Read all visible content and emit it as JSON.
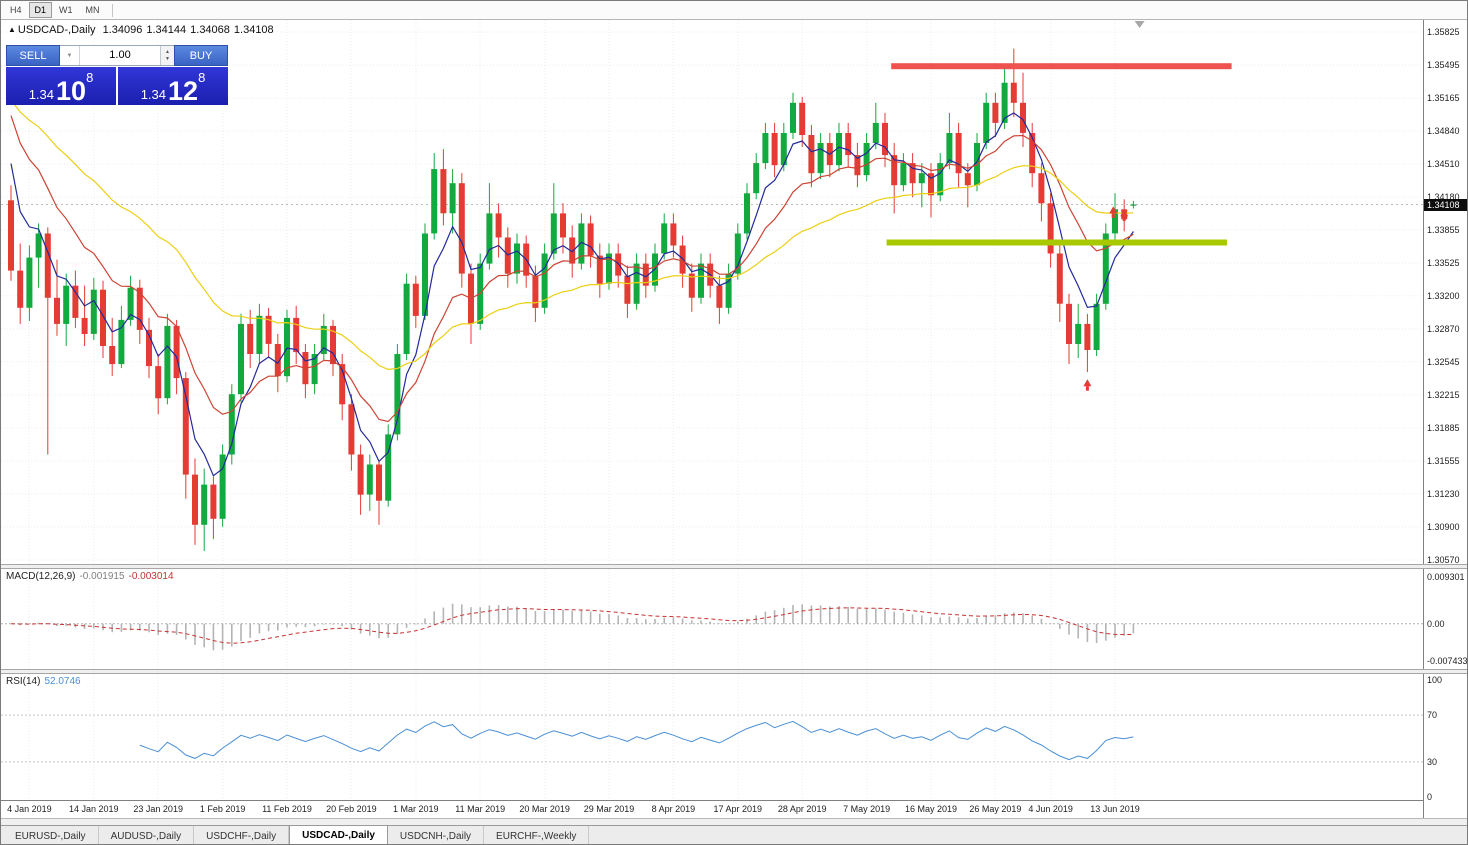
{
  "toolbar": {
    "timeframes": [
      "H4",
      "D1",
      "W1",
      "MN"
    ],
    "active": "D1"
  },
  "symbol_info": {
    "direction_icon": "up-triangle",
    "symbol": "USDCAD-,Daily",
    "open": "1.34096",
    "high": "1.34144",
    "low": "1.34068",
    "close": "1.34108"
  },
  "trade_panel": {
    "sell_label": "SELL",
    "buy_label": "BUY",
    "volume": "1.00",
    "sell_price": {
      "base": "1.34",
      "pips": "10",
      "pipette": "8"
    },
    "buy_price": {
      "base": "1.34",
      "pips": "12",
      "pipette": "8"
    }
  },
  "price_badge": "1.34108",
  "chart_data": {
    "type": "candlestick",
    "symbol": "USDCAD",
    "timeframe": "Daily",
    "ylim": [
      1.3057,
      1.35825
    ],
    "y_axis_labels": [
      "1.35825",
      "1.35495",
      "1.35165",
      "1.34840",
      "1.34510",
      "1.34180",
      "1.33855",
      "1.33525",
      "1.33200",
      "1.32870",
      "1.32545",
      "1.32215",
      "1.31885",
      "1.31555",
      "1.31230",
      "1.30900",
      "1.30570"
    ],
    "x_labels": [
      {
        "index": 2,
        "label": "4 Jan 2019"
      },
      {
        "index": 9,
        "label": "14 Jan 2019"
      },
      {
        "index": 16,
        "label": "23 Jan 2019"
      },
      {
        "index": 23,
        "label": "1 Feb 2019"
      },
      {
        "index": 30,
        "label": "11 Feb 2019"
      },
      {
        "index": 37,
        "label": "20 Feb 2019"
      },
      {
        "index": 44,
        "label": "1 Mar 2019"
      },
      {
        "index": 51,
        "label": "11 Mar 2019"
      },
      {
        "index": 58,
        "label": "20 Mar 2019"
      },
      {
        "index": 65,
        "label": "29 Mar 2019"
      },
      {
        "index": 72,
        "label": "8 Apr 2019"
      },
      {
        "index": 79,
        "label": "17 Apr 2019"
      },
      {
        "index": 86,
        "label": "28 Apr 2019"
      },
      {
        "index": 93,
        "label": "7 May 2019"
      },
      {
        "index": 100,
        "label": "16 May 2019"
      },
      {
        "index": 107,
        "label": "26 May 2019"
      },
      {
        "index": 113,
        "label": "4 Jun 2019"
      },
      {
        "index": 120,
        "label": "13 Jun 2019"
      }
    ],
    "up_color": "#12a93e",
    "down_color": "#e43b35",
    "candles": [
      [
        1.3415,
        1.343,
        1.3335,
        1.3345
      ],
      [
        1.3345,
        1.3372,
        1.3292,
        1.3308
      ],
      [
        1.3308,
        1.337,
        1.3295,
        1.3358
      ],
      [
        1.3358,
        1.3392,
        1.3328,
        1.3382
      ],
      [
        1.3382,
        1.3388,
        1.3162,
        1.3318
      ],
      [
        1.3318,
        1.3356,
        1.328,
        1.3292
      ],
      [
        1.3292,
        1.3342,
        1.327,
        1.333
      ],
      [
        1.333,
        1.3345,
        1.3288,
        1.3298
      ],
      [
        1.3298,
        1.333,
        1.327,
        1.3282
      ],
      [
        1.3282,
        1.3338,
        1.3276,
        1.3326
      ],
      [
        1.3326,
        1.3335,
        1.3258,
        1.327
      ],
      [
        1.327,
        1.3298,
        1.324,
        1.3252
      ],
      [
        1.3252,
        1.331,
        1.3248,
        1.3296
      ],
      [
        1.3296,
        1.334,
        1.329,
        1.3328
      ],
      [
        1.3328,
        1.3336,
        1.3272,
        1.3286
      ],
      [
        1.3286,
        1.3298,
        1.3238,
        1.325
      ],
      [
        1.325,
        1.3262,
        1.3202,
        1.3218
      ],
      [
        1.3218,
        1.3302,
        1.3212,
        1.329
      ],
      [
        1.329,
        1.3296,
        1.3222,
        1.3238
      ],
      [
        1.3238,
        1.3244,
        1.3118,
        1.3142
      ],
      [
        1.3142,
        1.3158,
        1.3072,
        1.3092
      ],
      [
        1.3092,
        1.3148,
        1.3066,
        1.3132
      ],
      [
        1.3132,
        1.314,
        1.3078,
        1.3098
      ],
      [
        1.3098,
        1.3172,
        1.309,
        1.3162
      ],
      [
        1.3162,
        1.3232,
        1.3152,
        1.3222
      ],
      [
        1.3222,
        1.3302,
        1.3214,
        1.3292
      ],
      [
        1.3292,
        1.3306,
        1.3248,
        1.3262
      ],
      [
        1.3262,
        1.3312,
        1.3252,
        1.33
      ],
      [
        1.33,
        1.3308,
        1.3258,
        1.3272
      ],
      [
        1.3272,
        1.3282,
        1.3224,
        1.324
      ],
      [
        1.324,
        1.3306,
        1.3234,
        1.3298
      ],
      [
        1.3298,
        1.331,
        1.3252,
        1.3264
      ],
      [
        1.3264,
        1.3272,
        1.3218,
        1.3232
      ],
      [
        1.3232,
        1.3272,
        1.3222,
        1.3262
      ],
      [
        1.3262,
        1.3302,
        1.3256,
        1.329
      ],
      [
        1.329,
        1.3296,
        1.324,
        1.3252
      ],
      [
        1.3252,
        1.3262,
        1.3196,
        1.3212
      ],
      [
        1.3212,
        1.3222,
        1.3146,
        1.3162
      ],
      [
        1.3162,
        1.3172,
        1.3102,
        1.3122
      ],
      [
        1.3122,
        1.3162,
        1.3106,
        1.3152
      ],
      [
        1.3152,
        1.3156,
        1.3092,
        1.3116
      ],
      [
        1.3116,
        1.3192,
        1.311,
        1.3182
      ],
      [
        1.3182,
        1.3272,
        1.3176,
        1.3262
      ],
      [
        1.3262,
        1.3342,
        1.3256,
        1.3332
      ],
      [
        1.3332,
        1.334,
        1.3288,
        1.33
      ],
      [
        1.33,
        1.3392,
        1.3296,
        1.3382
      ],
      [
        1.3382,
        1.3462,
        1.3376,
        1.3446
      ],
      [
        1.3446,
        1.3466,
        1.339,
        1.3402
      ],
      [
        1.3402,
        1.3446,
        1.3382,
        1.3432
      ],
      [
        1.3432,
        1.3442,
        1.3328,
        1.3342
      ],
      [
        1.3342,
        1.3352,
        1.3272,
        1.3292
      ],
      [
        1.3292,
        1.3362,
        1.3286,
        1.3352
      ],
      [
        1.3352,
        1.3432,
        1.3346,
        1.3402
      ],
      [
        1.3402,
        1.3412,
        1.3358,
        1.3378
      ],
      [
        1.3378,
        1.3388,
        1.3328,
        1.3342
      ],
      [
        1.3342,
        1.3382,
        1.3332,
        1.3372
      ],
      [
        1.3372,
        1.338,
        1.3328,
        1.334
      ],
      [
        1.334,
        1.335,
        1.3294,
        1.3308
      ],
      [
        1.3308,
        1.3372,
        1.3302,
        1.3362
      ],
      [
        1.3362,
        1.3432,
        1.3356,
        1.3402
      ],
      [
        1.3402,
        1.3412,
        1.3362,
        1.3378
      ],
      [
        1.3378,
        1.339,
        1.3338,
        1.3352
      ],
      [
        1.3352,
        1.3402,
        1.3346,
        1.3392
      ],
      [
        1.3392,
        1.34,
        1.3348,
        1.336
      ],
      [
        1.336,
        1.3372,
        1.3318,
        1.3332
      ],
      [
        1.3332,
        1.3372,
        1.3326,
        1.3362
      ],
      [
        1.3362,
        1.3372,
        1.3328,
        1.334
      ],
      [
        1.334,
        1.335,
        1.3298,
        1.3312
      ],
      [
        1.3312,
        1.3362,
        1.3306,
        1.3352
      ],
      [
        1.3352,
        1.3362,
        1.3318,
        1.333
      ],
      [
        1.333,
        1.3372,
        1.3324,
        1.3362
      ],
      [
        1.3362,
        1.3402,
        1.3356,
        1.3392
      ],
      [
        1.3392,
        1.3402,
        1.3358,
        1.337
      ],
      [
        1.337,
        1.338,
        1.3328,
        1.3342
      ],
      [
        1.3342,
        1.3352,
        1.3304,
        1.3318
      ],
      [
        1.3318,
        1.3362,
        1.3312,
        1.3352
      ],
      [
        1.3352,
        1.3362,
        1.3318,
        1.333
      ],
      [
        1.333,
        1.334,
        1.3292,
        1.3308
      ],
      [
        1.3308,
        1.3352,
        1.3302,
        1.3342
      ],
      [
        1.3342,
        1.3392,
        1.3336,
        1.3382
      ],
      [
        1.3382,
        1.3432,
        1.3376,
        1.3422
      ],
      [
        1.3422,
        1.3462,
        1.3416,
        1.3452
      ],
      [
        1.3452,
        1.3492,
        1.3446,
        1.3482
      ],
      [
        1.3482,
        1.3492,
        1.3438,
        1.345
      ],
      [
        1.345,
        1.3492,
        1.3444,
        1.3482
      ],
      [
        1.3482,
        1.3522,
        1.3476,
        1.3512
      ],
      [
        1.3512,
        1.3518,
        1.3468,
        1.348
      ],
      [
        1.348,
        1.349,
        1.3428,
        1.3442
      ],
      [
        1.3442,
        1.3482,
        1.3436,
        1.3472
      ],
      [
        1.3472,
        1.3482,
        1.3438,
        1.345
      ],
      [
        1.345,
        1.3492,
        1.3444,
        1.3482
      ],
      [
        1.3482,
        1.3492,
        1.3448,
        1.346
      ],
      [
        1.346,
        1.3472,
        1.3428,
        1.344
      ],
      [
        1.344,
        1.3482,
        1.3434,
        1.3472
      ],
      [
        1.3472,
        1.3512,
        1.3466,
        1.3492
      ],
      [
        1.3492,
        1.3502,
        1.3448,
        1.346
      ],
      [
        1.346,
        1.3472,
        1.3402,
        1.343
      ],
      [
        1.343,
        1.3462,
        1.3424,
        1.3452
      ],
      [
        1.3452,
        1.3462,
        1.3418,
        1.3432
      ],
      [
        1.3432,
        1.3452,
        1.3408,
        1.3442
      ],
      [
        1.3442,
        1.3452,
        1.3398,
        1.342
      ],
      [
        1.342,
        1.3462,
        1.3414,
        1.3452
      ],
      [
        1.3452,
        1.3502,
        1.3446,
        1.3482
      ],
      [
        1.3482,
        1.3492,
        1.3428,
        1.3442
      ],
      [
        1.3442,
        1.3452,
        1.3408,
        1.343
      ],
      [
        1.343,
        1.3482,
        1.3424,
        1.3472
      ],
      [
        1.3472,
        1.3522,
        1.3466,
        1.3512
      ],
      [
        1.3512,
        1.3522,
        1.3478,
        1.3492
      ],
      [
        1.3492,
        1.3548,
        1.3486,
        1.3532
      ],
      [
        1.3532,
        1.3566,
        1.3498,
        1.3512
      ],
      [
        1.3512,
        1.3542,
        1.3468,
        1.3482
      ],
      [
        1.3482,
        1.3492,
        1.3428,
        1.3442
      ],
      [
        1.3442,
        1.3452,
        1.3394,
        1.3412
      ],
      [
        1.3412,
        1.3422,
        1.3348,
        1.3362
      ],
      [
        1.3362,
        1.3372,
        1.3294,
        1.3312
      ],
      [
        1.3312,
        1.3322,
        1.3252,
        1.3272
      ],
      [
        1.3272,
        1.3312,
        1.3258,
        1.3292
      ],
      [
        1.3292,
        1.3302,
        1.3244,
        1.3266
      ],
      [
        1.3266,
        1.3322,
        1.326,
        1.3312
      ],
      [
        1.3312,
        1.3392,
        1.3306,
        1.3382
      ],
      [
        1.3382,
        1.3422,
        1.3376,
        1.3406
      ],
      [
        1.3406,
        1.3416,
        1.3384,
        1.3396
      ],
      [
        1.34096,
        1.34144,
        1.34068,
        1.34108
      ]
    ],
    "moving_averages": [
      {
        "name": "ma-fast",
        "period": 5,
        "seed": 1.3505,
        "color": "#232a9a"
      },
      {
        "name": "ma-medium",
        "period": 13,
        "seed": 1.3525,
        "color": "#cc4433"
      },
      {
        "name": "ma-slow",
        "period": 34,
        "seed": 1.3525,
        "color": "#eccf12"
      }
    ],
    "hlines": [
      {
        "name": "resistance-line",
        "price": 1.35485,
        "color": "#ef5350",
        "from_index": 96,
        "to_index": 133,
        "thickness": 6
      },
      {
        "name": "support-line",
        "price": 1.3373,
        "color": "#a8c800",
        "from_index": 95.5,
        "to_index": 132.5,
        "thickness": 6
      }
    ],
    "last_price": 1.34108,
    "markers": [
      {
        "index": 117,
        "price": 1.323,
        "color": "#e43b35",
        "shape": "up-arrow"
      },
      {
        "index": 119.8,
        "price": 1.3402,
        "color": "#e43b35",
        "shape": "up-arrow"
      },
      {
        "index": 121,
        "price": 1.3399,
        "color": "#e43b35",
        "shape": "up-arrow"
      }
    ],
    "shift_marker_index": 123,
    "macd": {
      "label": "MACD(12,26,9)",
      "value_main": "-0.001915",
      "value_signal": "-0.003014",
      "fast": 12,
      "slow": 26,
      "signal": 9,
      "ylim": [
        -0.007433,
        0.009301
      ],
      "scale_labels": [
        "0.009301",
        "0.00",
        "-0.007433"
      ],
      "hist_color": "#b4b4b4",
      "signal_color": "#c83232"
    },
    "rsi": {
      "label": "RSI(14)",
      "value": "52.0746",
      "period": 14,
      "ylim": [
        0,
        100
      ],
      "levels": [
        70,
        30
      ],
      "scale_labels": [
        "100",
        "70",
        "30",
        "0"
      ],
      "color": "#4a8fd3"
    }
  },
  "tabs": {
    "items": [
      "EURUSD-,Daily",
      "AUDUSD-,Daily",
      "USDCHF-,Daily",
      "USDCAD-,Daily",
      "USDCNH-,Daily",
      "EURCHF-,Weekly"
    ],
    "active_index": 3
  }
}
